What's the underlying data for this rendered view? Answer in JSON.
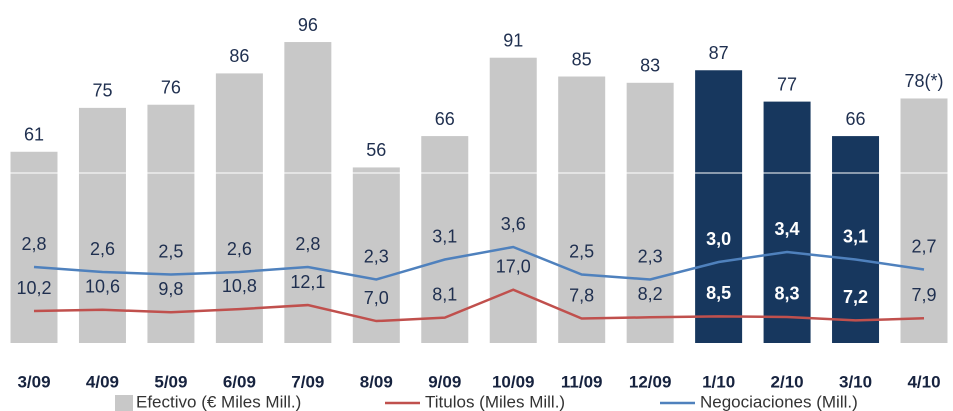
{
  "chart_data": {
    "type": "bar-line",
    "categories": [
      "3/09",
      "4/09",
      "5/09",
      "6/09",
      "7/09",
      "8/09",
      "9/09",
      "10/09",
      "11/09",
      "12/09",
      "1/10",
      "2/10",
      "3/10",
      "4/10"
    ],
    "series": [
      {
        "name": "Efectivo (€ Miles Mill.)",
        "type": "bar",
        "colors": [
          "#c8c8c8",
          "#c8c8c8",
          "#c8c8c8",
          "#c8c8c8",
          "#c8c8c8",
          "#c8c8c8",
          "#c8c8c8",
          "#c8c8c8",
          "#c8c8c8",
          "#c8c8c8",
          "#17375e",
          "#17375e",
          "#17375e",
          "#c8c8c8"
        ],
        "color": "#c8c8c8",
        "values": [
          61,
          75,
          76,
          86,
          96,
          56,
          66,
          91,
          85,
          83,
          87,
          77,
          66,
          78
        ],
        "value_labels": [
          "61",
          "75",
          "76",
          "86",
          "96",
          "56",
          "66",
          "91",
          "85",
          "83",
          "87",
          "77",
          "66",
          "78(*)"
        ]
      },
      {
        "name": "Titulos (Miles Mill.)",
        "type": "line",
        "color": "#c0504d",
        "values": [
          10.2,
          10.6,
          9.8,
          10.8,
          12.1,
          7.0,
          8.1,
          17.0,
          7.8,
          8.2,
          8.5,
          8.3,
          7.2,
          7.9
        ],
        "value_labels": [
          "10,2",
          "10,6",
          "9,8",
          "10,8",
          "12,1",
          "7,0",
          "8,1",
          "17,0",
          "7,8",
          "8,2",
          "8,5",
          "8,3",
          "7,2",
          "7,9"
        ]
      },
      {
        "name": "Negociaciones (Mill.)",
        "type": "line",
        "color": "#4f81bd",
        "values": [
          2.8,
          2.6,
          2.5,
          2.6,
          2.8,
          2.3,
          3.1,
          3.6,
          2.5,
          2.3,
          3.0,
          3.4,
          3.1,
          2.7
        ],
        "value_labels": [
          "2,8",
          "2,6",
          "2,5",
          "2,6",
          "2,8",
          "2,3",
          "3,1",
          "3,6",
          "2,5",
          "2,3",
          "3,0",
          "3,4",
          "3,1",
          "2,7"
        ]
      }
    ]
  }
}
